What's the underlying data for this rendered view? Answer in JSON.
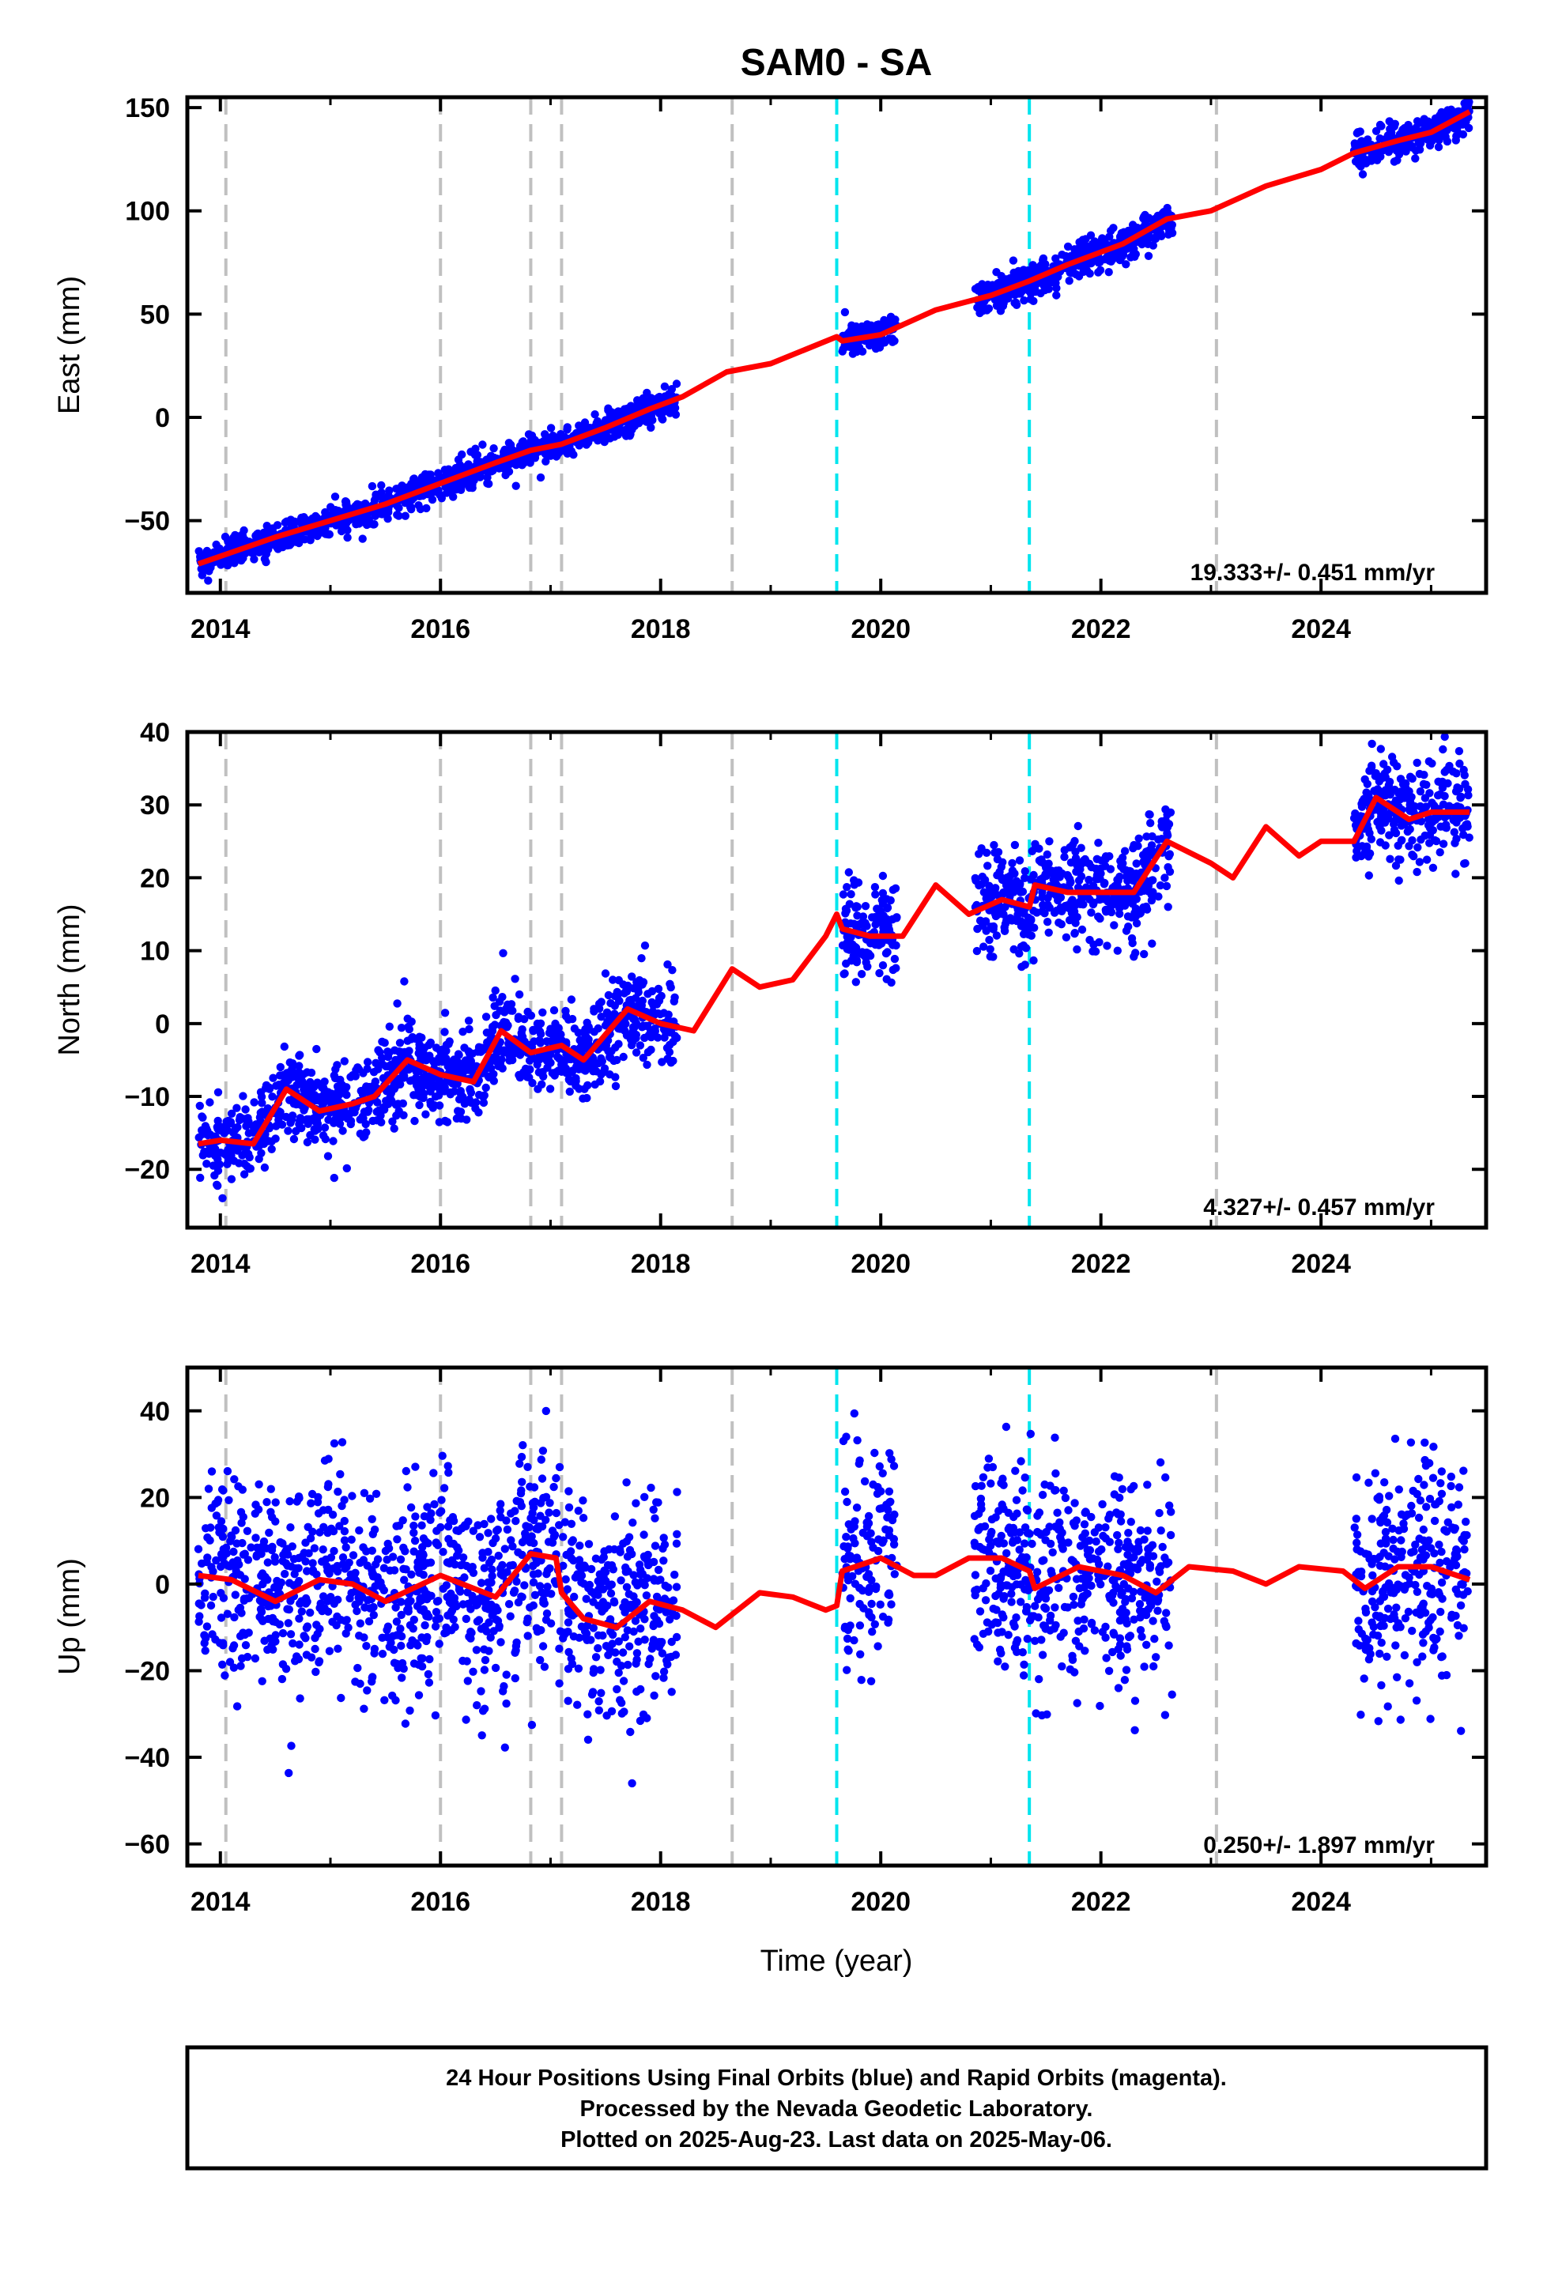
{
  "title": "SAM0 - SA",
  "xlabel": "Time (year)",
  "colors": {
    "final_orbits": "#0000ff",
    "model": "#ff0000",
    "gray_lines": "#c0c0c0",
    "cyan_lines": "#00e5ee",
    "frame": "#000000"
  },
  "chart_data": [
    {
      "type": "scatter",
      "panel": "east",
      "ylabel": "East (mm)",
      "rate_text": "19.333+/- 0.451 mm/yr",
      "xlim": [
        2013.7,
        2025.5
      ],
      "ylim": [
        -85,
        155
      ],
      "yticks": [
        -50,
        0,
        50,
        100,
        150
      ],
      "xticks": [
        2014,
        2016,
        2018,
        2020,
        2022,
        2024
      ],
      "gray_lines": [
        2014.05,
        2016.0,
        2016.82,
        2017.1,
        2018.65,
        2023.05
      ],
      "cyan_lines": [
        2019.6,
        2021.35
      ],
      "data_segments": [
        {
          "start": 2013.8,
          "end": 2018.15,
          "spread": 3.5
        },
        {
          "start": 2019.65,
          "end": 2020.15,
          "spread": 4
        },
        {
          "start": 2020.85,
          "end": 2022.65,
          "spread": 4
        },
        {
          "start": 2024.3,
          "end": 2025.35,
          "spread": 4
        }
      ],
      "model": [
        [
          2013.8,
          -71
        ],
        [
          2014.5,
          -58
        ],
        [
          2015.0,
          -50
        ],
        [
          2015.5,
          -42
        ],
        [
          2016.0,
          -32
        ],
        [
          2016.5,
          -22
        ],
        [
          2016.82,
          -16
        ],
        [
          2017.1,
          -13
        ],
        [
          2017.5,
          -5
        ],
        [
          2017.9,
          4
        ],
        [
          2018.2,
          10
        ],
        [
          2018.6,
          22
        ],
        [
          2019.0,
          26
        ],
        [
          2019.6,
          39
        ],
        [
          2019.65,
          37
        ],
        [
          2020.0,
          40
        ],
        [
          2020.5,
          52
        ],
        [
          2021.0,
          59
        ],
        [
          2021.35,
          66
        ],
        [
          2021.7,
          74
        ],
        [
          2022.2,
          84
        ],
        [
          2022.6,
          96
        ],
        [
          2023.0,
          100
        ],
        [
          2023.5,
          112
        ],
        [
          2024.0,
          120
        ],
        [
          2024.3,
          128
        ],
        [
          2024.7,
          134
        ],
        [
          2025.0,
          138
        ],
        [
          2025.35,
          148
        ]
      ]
    },
    {
      "type": "scatter",
      "panel": "north",
      "ylabel": "North (mm)",
      "rate_text": "4.327+/- 0.457 mm/yr",
      "xlim": [
        2013.7,
        2025.5
      ],
      "ylim": [
        -28,
        40
      ],
      "yticks": [
        -20,
        -10,
        0,
        10,
        20,
        30,
        40
      ],
      "xticks": [
        2014,
        2016,
        2018,
        2020,
        2022,
        2024
      ],
      "gray_lines": [
        2014.05,
        2016.0,
        2016.82,
        2017.1,
        2018.65,
        2023.05
      ],
      "cyan_lines": [
        2019.6,
        2021.35
      ],
      "data_segments": [
        {
          "start": 2013.8,
          "end": 2018.15,
          "spread": 3
        },
        {
          "start": 2019.65,
          "end": 2020.15,
          "spread": 3.5
        },
        {
          "start": 2020.85,
          "end": 2022.65,
          "spread": 3.5
        },
        {
          "start": 2024.3,
          "end": 2025.35,
          "spread": 3.5
        }
      ],
      "model": [
        [
          2013.8,
          -16.5
        ],
        [
          2014.0,
          -16
        ],
        [
          2014.3,
          -16.5
        ],
        [
          2014.6,
          -9
        ],
        [
          2014.9,
          -12
        ],
        [
          2015.2,
          -11
        ],
        [
          2015.4,
          -10
        ],
        [
          2015.7,
          -5
        ],
        [
          2016.0,
          -7
        ],
        [
          2016.3,
          -8
        ],
        [
          2016.55,
          -1
        ],
        [
          2016.82,
          -4
        ],
        [
          2017.1,
          -3
        ],
        [
          2017.3,
          -5
        ],
        [
          2017.7,
          2
        ],
        [
          2018.0,
          0
        ],
        [
          2018.3,
          -1
        ],
        [
          2018.65,
          7.5
        ],
        [
          2018.9,
          5
        ],
        [
          2019.2,
          6
        ],
        [
          2019.5,
          12
        ],
        [
          2019.6,
          15
        ],
        [
          2019.65,
          13
        ],
        [
          2019.9,
          12
        ],
        [
          2020.2,
          12
        ],
        [
          2020.5,
          19
        ],
        [
          2020.8,
          15
        ],
        [
          2021.1,
          17
        ],
        [
          2021.35,
          16
        ],
        [
          2021.4,
          19
        ],
        [
          2021.7,
          18
        ],
        [
          2022.0,
          18
        ],
        [
          2022.3,
          18
        ],
        [
          2022.6,
          25
        ],
        [
          2023.0,
          22
        ],
        [
          2023.2,
          20
        ],
        [
          2023.5,
          27
        ],
        [
          2023.8,
          23
        ],
        [
          2024.0,
          25
        ],
        [
          2024.3,
          25
        ],
        [
          2024.5,
          31
        ],
        [
          2024.8,
          28
        ],
        [
          2025.0,
          29
        ],
        [
          2025.35,
          29
        ]
      ]
    },
    {
      "type": "scatter",
      "panel": "up",
      "ylabel": "Up (mm)",
      "rate_text": "0.250+/- 1.897 mm/yr",
      "xlim": [
        2013.7,
        2025.5
      ],
      "ylim": [
        -65,
        50
      ],
      "yticks": [
        -60,
        -40,
        -20,
        0,
        20,
        40
      ],
      "xticks": [
        2014,
        2016,
        2018,
        2020,
        2022,
        2024
      ],
      "gray_lines": [
        2014.05,
        2016.0,
        2016.82,
        2017.1,
        2018.65,
        2023.05
      ],
      "cyan_lines": [
        2019.6,
        2021.35
      ],
      "data_segments": [
        {
          "start": 2013.8,
          "end": 2018.15,
          "spread": 12
        },
        {
          "start": 2019.65,
          "end": 2020.15,
          "spread": 12
        },
        {
          "start": 2020.85,
          "end": 2022.65,
          "spread": 12
        },
        {
          "start": 2024.3,
          "end": 2025.35,
          "spread": 12
        }
      ],
      "model": [
        [
          2013.8,
          2
        ],
        [
          2014.1,
          1
        ],
        [
          2014.5,
          -4
        ],
        [
          2014.9,
          1
        ],
        [
          2015.2,
          0
        ],
        [
          2015.5,
          -4
        ],
        [
          2016.0,
          2
        ],
        [
          2016.2,
          0
        ],
        [
          2016.5,
          -3
        ],
        [
          2016.82,
          7
        ],
        [
          2017.05,
          6
        ],
        [
          2017.1,
          -2
        ],
        [
          2017.3,
          -8
        ],
        [
          2017.6,
          -10
        ],
        [
          2017.9,
          -4
        ],
        [
          2018.2,
          -6
        ],
        [
          2018.5,
          -10
        ],
        [
          2018.65,
          -7
        ],
        [
          2018.9,
          -2
        ],
        [
          2019.2,
          -3
        ],
        [
          2019.5,
          -6
        ],
        [
          2019.6,
          -5
        ],
        [
          2019.65,
          3
        ],
        [
          2020.0,
          6
        ],
        [
          2020.3,
          2
        ],
        [
          2020.5,
          2
        ],
        [
          2020.8,
          6
        ],
        [
          2021.1,
          6
        ],
        [
          2021.35,
          3
        ],
        [
          2021.4,
          -1
        ],
        [
          2021.8,
          4
        ],
        [
          2022.2,
          2
        ],
        [
          2022.5,
          -2
        ],
        [
          2022.8,
          4
        ],
        [
          2023.2,
          3
        ],
        [
          2023.5,
          0
        ],
        [
          2023.8,
          4
        ],
        [
          2024.2,
          3
        ],
        [
          2024.4,
          -1
        ],
        [
          2024.7,
          4
        ],
        [
          2025.0,
          4
        ],
        [
          2025.35,
          1
        ]
      ]
    }
  ],
  "footer": {
    "line1": "24 Hour Positions Using Final Orbits (blue) and Rapid Orbits (magenta).",
    "line2": "Processed by the Nevada Geodetic Laboratory.",
    "line3": "Plotted on 2025-Aug-23. Last data on 2025-May-06."
  }
}
